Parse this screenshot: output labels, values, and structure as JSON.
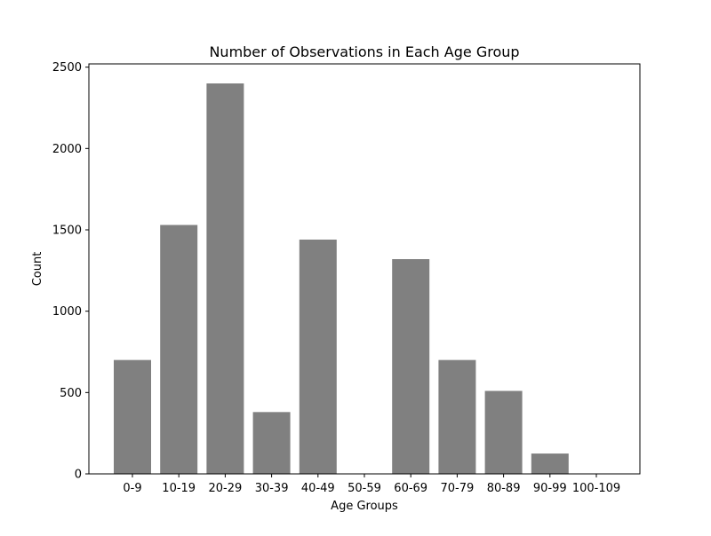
{
  "chart_data": {
    "type": "bar",
    "title": "Number of Observations in Each Age Group",
    "xlabel": "Age Groups",
    "ylabel": "Count",
    "categories": [
      "0-9",
      "10-19",
      "20-29",
      "30-39",
      "40-49",
      "50-59",
      "60-69",
      "70-79",
      "80-89",
      "90-99",
      "100-109"
    ],
    "values": [
      700,
      1530,
      2400,
      380,
      1440,
      0,
      1320,
      700,
      510,
      125,
      0
    ],
    "ylim": [
      0,
      2520
    ],
    "yticks": [
      0,
      500,
      1000,
      1500,
      2000,
      2500
    ],
    "grid": false,
    "legend": "none",
    "bar_color": "#808080",
    "axis_color": "#000000"
  }
}
